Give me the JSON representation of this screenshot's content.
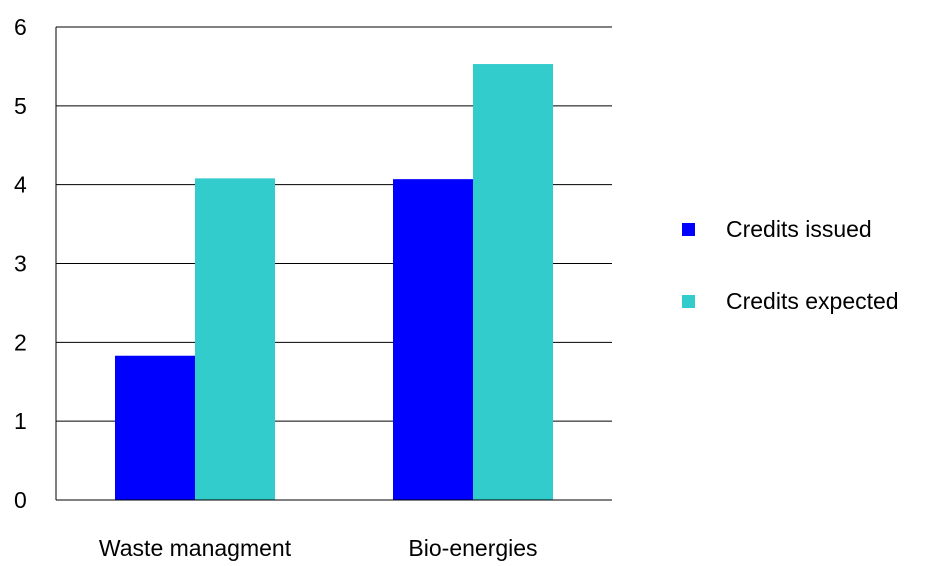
{
  "chart_data": {
    "type": "bar",
    "title": "",
    "xlabel": "",
    "ylabel": "",
    "categories": [
      "Waste managment",
      "Bio-energies"
    ],
    "series": [
      {
        "name": "Credits issued",
        "color": "#0000FF",
        "values": [
          1.83,
          4.07
        ]
      },
      {
        "name": "Credits expected",
        "color": "#33CCCC",
        "values": [
          4.08,
          5.53
        ]
      }
    ],
    "ylim": [
      0,
      6
    ],
    "yticks": [
      0,
      1,
      2,
      3,
      4,
      5,
      6
    ],
    "grid": true,
    "legend_position": "right"
  }
}
